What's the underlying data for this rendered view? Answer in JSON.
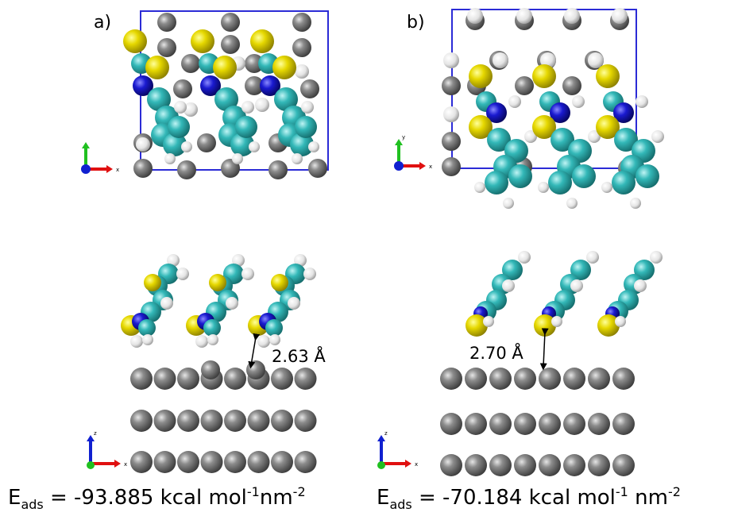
{
  "panels": {
    "a": {
      "label": "a)",
      "distance": "2.63 Å",
      "energy": {
        "symbol": "E",
        "sub": "ads",
        "eq": " = -93.885 kcal mol",
        "sup1": "-1",
        "mid": "nm",
        "sup2": "-2"
      }
    },
    "b": {
      "label": "b)",
      "distance": "2.70 Å",
      "energy": {
        "symbol": "E",
        "sub": "ads",
        "eq": " = -70.184 kcal mol",
        "sup1": "-1",
        "mid": " nm",
        "sup2": "-2"
      }
    }
  },
  "axes": {
    "x": "x",
    "y": "y",
    "z": "z"
  },
  "colors": {
    "cell_box": "#2b2bd6",
    "carbon": "#2fb5b5",
    "sulfur": "#e8d800",
    "nitrogen": "#1414c8",
    "hydrogen": "#f2f2f2",
    "metal": "#7a7a7a",
    "axis_x": "#e01010",
    "axis_y": "#20c020",
    "axis_z": "#1020d0"
  }
}
